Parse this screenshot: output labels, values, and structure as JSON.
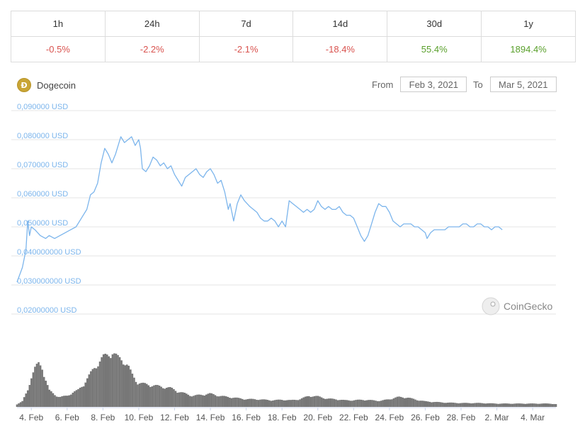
{
  "performance": {
    "periods": [
      "1h",
      "24h",
      "7d",
      "14d",
      "30d",
      "1y"
    ],
    "changes": [
      "-0.5%",
      "-2.2%",
      "-2.1%",
      "-18.4%",
      "55.4%",
      "1894.4%"
    ]
  },
  "coin": {
    "name": "Dogecoin",
    "icon": "dogecoin-logo"
  },
  "date_range": {
    "from_label": "From",
    "from_value": "Feb 3, 2021",
    "to_label": "To",
    "to_value": "Mar 5, 2021"
  },
  "watermark": "CoinGecko",
  "colors": {
    "line": "#7cb5ec",
    "volume": "#777777",
    "negative": "#d9534f",
    "positive": "#5aa02c"
  },
  "chart_data": {
    "type": "line",
    "y_tick_labels": [
      "0,090000 USD",
      "0,080000 USD",
      "0,070000 USD",
      "0,060000 USD",
      "0,050000 USD",
      "0,040000000 USD",
      "0,030000000 USD",
      "0,02000000 USD"
    ],
    "y_ticks": [
      0.09,
      0.08,
      0.07,
      0.06,
      0.05,
      0.04,
      0.03,
      0.02
    ],
    "ylim": [
      0.02,
      0.09
    ],
    "x_tick_labels": [
      "4. Feb",
      "6. Feb",
      "8. Feb",
      "10. Feb",
      "12. Feb",
      "14. Feb",
      "16. Feb",
      "18. Feb",
      "20. Feb",
      "22. Feb",
      "24. Feb",
      "26. Feb",
      "28. Feb",
      "2. Mar",
      "4. Mar"
    ],
    "x_tick_days": [
      1,
      3,
      5,
      7,
      9,
      11,
      13,
      15,
      17,
      19,
      21,
      23,
      25,
      27,
      29
    ],
    "x_range_days": [
      0.2,
      30.3
    ],
    "grid": true,
    "series": [
      {
        "values": [
          [
            0.2,
            0.031
          ],
          [
            0.5,
            0.036
          ],
          [
            0.7,
            0.042
          ],
          [
            0.8,
            0.052
          ],
          [
            0.9,
            0.047
          ],
          [
            1.0,
            0.05
          ],
          [
            1.2,
            0.049
          ],
          [
            1.5,
            0.047
          ],
          [
            1.8,
            0.046
          ],
          [
            2.0,
            0.047
          ],
          [
            2.3,
            0.046
          ],
          [
            2.6,
            0.047
          ],
          [
            2.9,
            0.048
          ],
          [
            3.2,
            0.049
          ],
          [
            3.5,
            0.05
          ],
          [
            3.8,
            0.053
          ],
          [
            4.1,
            0.056
          ],
          [
            4.3,
            0.061
          ],
          [
            4.5,
            0.062
          ],
          [
            4.7,
            0.065
          ],
          [
            4.9,
            0.072
          ],
          [
            5.1,
            0.077
          ],
          [
            5.3,
            0.075
          ],
          [
            5.5,
            0.072
          ],
          [
            5.7,
            0.075
          ],
          [
            5.9,
            0.079
          ],
          [
            6.0,
            0.081
          ],
          [
            6.2,
            0.079
          ],
          [
            6.4,
            0.08
          ],
          [
            6.6,
            0.081
          ],
          [
            6.8,
            0.078
          ],
          [
            7.0,
            0.08
          ],
          [
            7.1,
            0.077
          ],
          [
            7.2,
            0.07
          ],
          [
            7.4,
            0.069
          ],
          [
            7.6,
            0.071
          ],
          [
            7.8,
            0.074
          ],
          [
            8.0,
            0.073
          ],
          [
            8.2,
            0.071
          ],
          [
            8.4,
            0.072
          ],
          [
            8.6,
            0.07
          ],
          [
            8.8,
            0.071
          ],
          [
            9.0,
            0.068
          ],
          [
            9.2,
            0.066
          ],
          [
            9.4,
            0.064
          ],
          [
            9.6,
            0.067
          ],
          [
            9.8,
            0.068
          ],
          [
            10.0,
            0.069
          ],
          [
            10.2,
            0.07
          ],
          [
            10.4,
            0.068
          ],
          [
            10.6,
            0.067
          ],
          [
            10.8,
            0.069
          ],
          [
            11.0,
            0.07
          ],
          [
            11.2,
            0.068
          ],
          [
            11.4,
            0.065
          ],
          [
            11.6,
            0.066
          ],
          [
            11.8,
            0.062
          ],
          [
            12.0,
            0.056
          ],
          [
            12.1,
            0.058
          ],
          [
            12.3,
            0.052
          ],
          [
            12.5,
            0.058
          ],
          [
            12.7,
            0.061
          ],
          [
            12.9,
            0.059
          ],
          [
            13.2,
            0.057
          ],
          [
            13.4,
            0.056
          ],
          [
            13.6,
            0.055
          ],
          [
            13.8,
            0.053
          ],
          [
            14.0,
            0.052
          ],
          [
            14.2,
            0.052
          ],
          [
            14.4,
            0.053
          ],
          [
            14.6,
            0.052
          ],
          [
            14.8,
            0.05
          ],
          [
            15.0,
            0.052
          ],
          [
            15.2,
            0.05
          ],
          [
            15.4,
            0.059
          ],
          [
            15.6,
            0.058
          ],
          [
            15.8,
            0.057
          ],
          [
            16.0,
            0.056
          ],
          [
            16.2,
            0.055
          ],
          [
            16.4,
            0.056
          ],
          [
            16.6,
            0.055
          ],
          [
            16.8,
            0.056
          ],
          [
            17.0,
            0.059
          ],
          [
            17.2,
            0.057
          ],
          [
            17.4,
            0.056
          ],
          [
            17.6,
            0.057
          ],
          [
            17.8,
            0.056
          ],
          [
            18.0,
            0.056
          ],
          [
            18.2,
            0.057
          ],
          [
            18.4,
            0.055
          ],
          [
            18.6,
            0.054
          ],
          [
            18.8,
            0.054
          ],
          [
            19.0,
            0.053
          ],
          [
            19.2,
            0.05
          ],
          [
            19.4,
            0.047
          ],
          [
            19.6,
            0.045
          ],
          [
            19.8,
            0.047
          ],
          [
            20.0,
            0.051
          ],
          [
            20.2,
            0.055
          ],
          [
            20.4,
            0.058
          ],
          [
            20.6,
            0.057
          ],
          [
            20.8,
            0.057
          ],
          [
            21.0,
            0.055
          ],
          [
            21.2,
            0.052
          ],
          [
            21.4,
            0.051
          ],
          [
            21.6,
            0.05
          ],
          [
            21.8,
            0.051
          ],
          [
            22.0,
            0.051
          ],
          [
            22.2,
            0.051
          ],
          [
            22.4,
            0.05
          ],
          [
            22.6,
            0.05
          ],
          [
            22.8,
            0.049
          ],
          [
            23.0,
            0.048
          ],
          [
            23.1,
            0.046
          ],
          [
            23.3,
            0.048
          ],
          [
            23.5,
            0.049
          ],
          [
            23.7,
            0.049
          ],
          [
            23.9,
            0.049
          ],
          [
            24.1,
            0.049
          ],
          [
            24.3,
            0.05
          ],
          [
            24.5,
            0.05
          ],
          [
            24.7,
            0.05
          ],
          [
            24.9,
            0.05
          ],
          [
            25.1,
            0.051
          ],
          [
            25.3,
            0.051
          ],
          [
            25.5,
            0.05
          ],
          [
            25.7,
            0.05
          ],
          [
            25.9,
            0.051
          ],
          [
            26.1,
            0.051
          ],
          [
            26.3,
            0.05
          ],
          [
            26.5,
            0.05
          ],
          [
            26.7,
            0.049
          ],
          [
            26.9,
            0.05
          ],
          [
            27.1,
            0.05
          ],
          [
            27.3,
            0.049
          ]
        ]
      }
    ],
    "volume_profile": [
      [
        0.2,
        0.05
      ],
      [
        0.5,
        0.1
      ],
      [
        0.8,
        0.3
      ],
      [
        1.0,
        0.55
      ],
      [
        1.2,
        0.7
      ],
      [
        1.4,
        0.78
      ],
      [
        1.6,
        0.72
      ],
      [
        1.8,
        0.5
      ],
      [
        2.0,
        0.3
      ],
      [
        2.3,
        0.22
      ],
      [
        2.6,
        0.18
      ],
      [
        3.0,
        0.2
      ],
      [
        3.3,
        0.26
      ],
      [
        3.6,
        0.3
      ],
      [
        3.9,
        0.4
      ],
      [
        4.2,
        0.55
      ],
      [
        4.5,
        0.7
      ],
      [
        4.8,
        0.82
      ],
      [
        5.0,
        0.9
      ],
      [
        5.3,
        0.95
      ],
      [
        5.5,
        1.0
      ],
      [
        5.8,
        0.9
      ],
      [
        6.1,
        0.85
      ],
      [
        6.4,
        0.75
      ],
      [
        6.6,
        0.6
      ],
      [
        6.9,
        0.45
      ],
      [
        7.2,
        0.42
      ],
      [
        7.6,
        0.4
      ],
      [
        8.0,
        0.38
      ],
      [
        8.4,
        0.36
      ],
      [
        8.8,
        0.34
      ],
      [
        9.2,
        0.28
      ],
      [
        9.6,
        0.24
      ],
      [
        10.0,
        0.2
      ],
      [
        10.5,
        0.22
      ],
      [
        11.0,
        0.24
      ],
      [
        11.5,
        0.2
      ],
      [
        12.0,
        0.18
      ],
      [
        12.5,
        0.16
      ],
      [
        13.0,
        0.14
      ],
      [
        13.5,
        0.14
      ],
      [
        14.0,
        0.13
      ],
      [
        14.5,
        0.12
      ],
      [
        15.0,
        0.13
      ],
      [
        15.5,
        0.12
      ],
      [
        16.0,
        0.14
      ],
      [
        16.5,
        0.2
      ],
      [
        17.0,
        0.19
      ],
      [
        17.5,
        0.15
      ],
      [
        18.0,
        0.14
      ],
      [
        18.5,
        0.12
      ],
      [
        19.0,
        0.12
      ],
      [
        19.5,
        0.13
      ],
      [
        20.0,
        0.12
      ],
      [
        20.5,
        0.11
      ],
      [
        21.0,
        0.14
      ],
      [
        21.5,
        0.18
      ],
      [
        22.0,
        0.17
      ],
      [
        22.5,
        0.13
      ],
      [
        23.0,
        0.1
      ],
      [
        23.5,
        0.09
      ],
      [
        24.0,
        0.08
      ],
      [
        25.0,
        0.07
      ],
      [
        26.0,
        0.07
      ],
      [
        27.0,
        0.06
      ],
      [
        28.0,
        0.06
      ],
      [
        29.0,
        0.06
      ],
      [
        30.0,
        0.06
      ],
      [
        30.3,
        0.05
      ]
    ]
  }
}
